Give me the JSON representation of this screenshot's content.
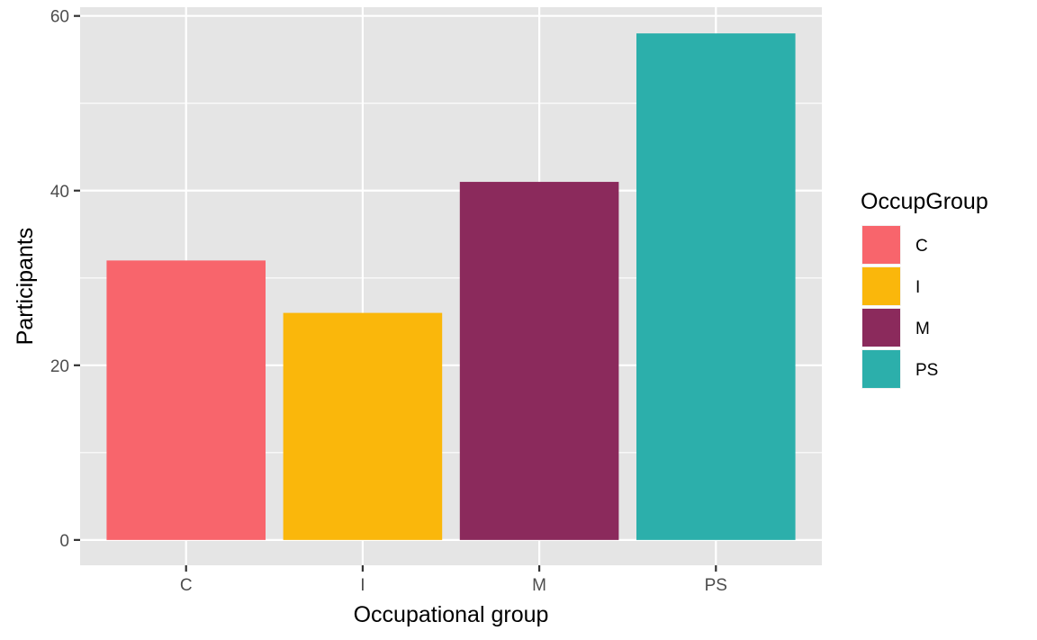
{
  "chart_data": {
    "type": "bar",
    "categories": [
      "C",
      "I",
      "M",
      "PS"
    ],
    "values": [
      32,
      26,
      41,
      58
    ],
    "colors": [
      "#F8656C",
      "#FAB70B",
      "#8B2A5C",
      "#2CAFAB"
    ],
    "xlabel": "Occupational group",
    "ylabel": "Participants",
    "ylim": [
      -2.9,
      61
    ],
    "yticks": [
      0,
      20,
      40,
      60
    ],
    "grid": true,
    "panel_background": "#E5E5E5",
    "legend": {
      "title": "OccupGroup",
      "position": "right",
      "entries": [
        "C",
        "I",
        "M",
        "PS"
      ]
    }
  }
}
